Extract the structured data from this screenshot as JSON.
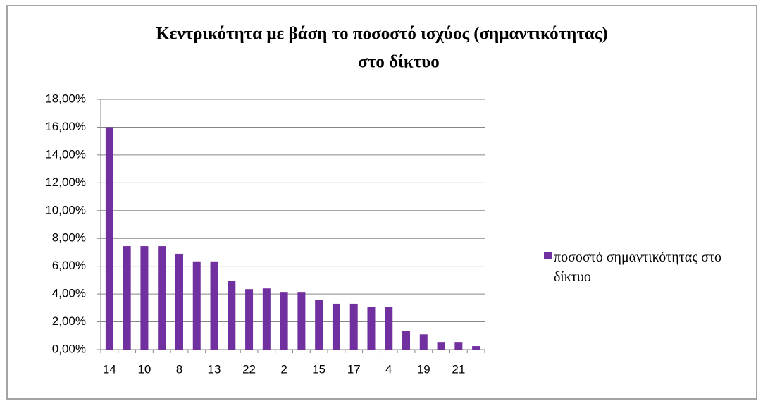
{
  "chart_data": {
    "type": "bar",
    "title": [
      "Κεντρικότητα με βάση το ποσοστό ισχύος (σημαντικότητας)",
      "στο δίκτυο"
    ],
    "categories": [
      "14",
      null,
      "10",
      null,
      "8",
      null,
      "13",
      null,
      "22",
      null,
      "2",
      null,
      "15",
      null,
      "17",
      null,
      "4",
      null,
      "19",
      null,
      "21",
      null
    ],
    "series": [
      {
        "name": "ποσοστό σημαντικότητας στο δίκτυο",
        "color": "#7030a0",
        "values": [
          16.0,
          7.45,
          7.45,
          7.45,
          6.9,
          6.35,
          6.35,
          4.95,
          4.35,
          4.4,
          4.15,
          4.15,
          3.6,
          3.3,
          3.3,
          3.05,
          3.05,
          1.35,
          1.1,
          0.55,
          0.55,
          0.25
        ]
      }
    ],
    "ylim": [
      0,
      18
    ],
    "yticks": [
      {
        "value": 0,
        "label": "0,00%"
      },
      {
        "value": 2,
        "label": "2,00%"
      },
      {
        "value": 4,
        "label": "4,00%"
      },
      {
        "value": 6,
        "label": "6,00%"
      },
      {
        "value": 8,
        "label": "8,00%"
      },
      {
        "value": 10,
        "label": "10,00%"
      },
      {
        "value": 12,
        "label": "12,00%"
      },
      {
        "value": 14,
        "label": "14,00%"
      },
      {
        "value": 16,
        "label": "16,00%"
      },
      {
        "value": 18,
        "label": "18,00%"
      }
    ],
    "grid": true,
    "legend": "right"
  }
}
